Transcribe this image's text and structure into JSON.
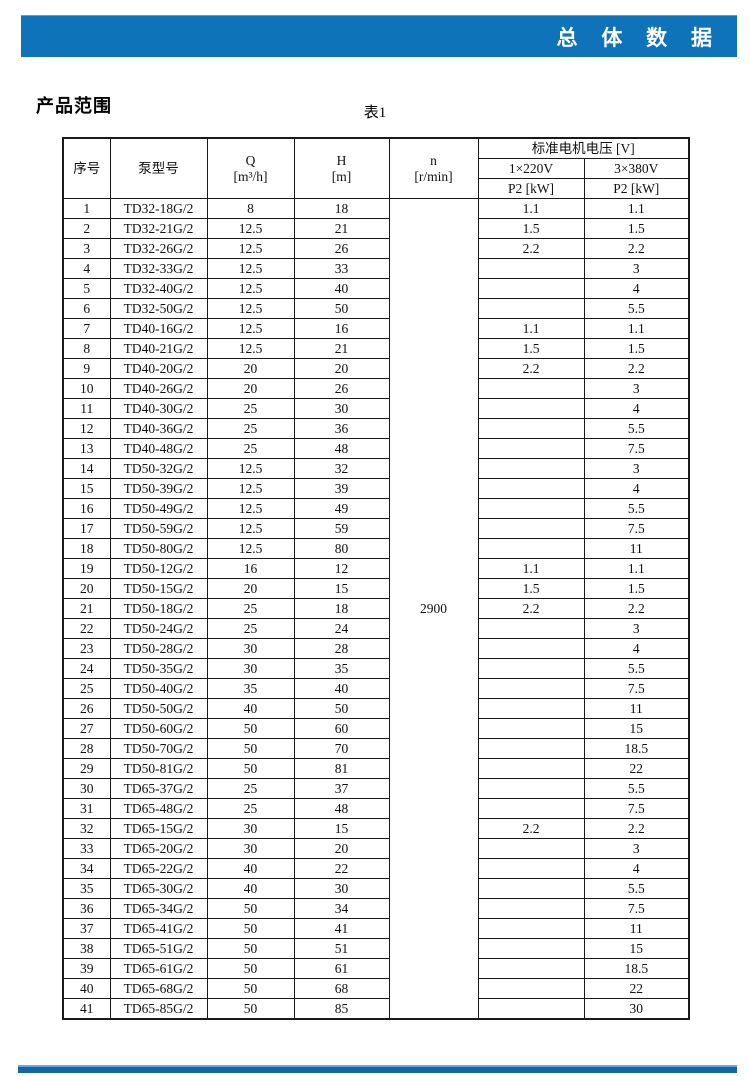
{
  "page": {
    "banner_title": "总 体 数 据",
    "section_title": "产品范围",
    "table_caption": "表1"
  },
  "colors": {
    "banner_blue": "#0e73b9",
    "footer_blue": "#1166a9",
    "border_black": "#1a1a1a"
  },
  "table": {
    "headers": {
      "no": "序号",
      "model": "泵型号",
      "q_line1": "Q",
      "q_line2": "[m³/h]",
      "h_line1": "H",
      "h_line2": "[m]",
      "n_line1": "n",
      "n_line2": "[r/min]",
      "voltage_group": "标准电机电压 [V]",
      "v220": "1×220V",
      "v380": "3×380V",
      "p2_220_label": "P2 [kW]",
      "p2_380_label": "P2 [kW]"
    },
    "speed_rpm": "2900",
    "rows": [
      {
        "no": "1",
        "model": "TD32-18G/2",
        "q": "8",
        "h": "18",
        "p2_220": "1.1",
        "p2_380": "1.1"
      },
      {
        "no": "2",
        "model": "TD32-21G/2",
        "q": "12.5",
        "h": "21",
        "p2_220": "1.5",
        "p2_380": "1.5"
      },
      {
        "no": "3",
        "model": "TD32-26G/2",
        "q": "12.5",
        "h": "26",
        "p2_220": "2.2",
        "p2_380": "2.2"
      },
      {
        "no": "4",
        "model": "TD32-33G/2",
        "q": "12.5",
        "h": "33",
        "p2_220": "",
        "p2_380": "3"
      },
      {
        "no": "5",
        "model": "TD32-40G/2",
        "q": "12.5",
        "h": "40",
        "p2_220": "",
        "p2_380": "4"
      },
      {
        "no": "6",
        "model": "TD32-50G/2",
        "q": "12.5",
        "h": "50",
        "p2_220": "",
        "p2_380": "5.5"
      },
      {
        "no": "7",
        "model": "TD40-16G/2",
        "q": "12.5",
        "h": "16",
        "p2_220": "1.1",
        "p2_380": "1.1"
      },
      {
        "no": "8",
        "model": "TD40-21G/2",
        "q": "12.5",
        "h": "21",
        "p2_220": "1.5",
        "p2_380": "1.5"
      },
      {
        "no": "9",
        "model": "TD40-20G/2",
        "q": "20",
        "h": "20",
        "p2_220": "2.2",
        "p2_380": "2.2"
      },
      {
        "no": "10",
        "model": "TD40-26G/2",
        "q": "20",
        "h": "26",
        "p2_220": "",
        "p2_380": "3"
      },
      {
        "no": "11",
        "model": "TD40-30G/2",
        "q": "25",
        "h": "30",
        "p2_220": "",
        "p2_380": "4"
      },
      {
        "no": "12",
        "model": "TD40-36G/2",
        "q": "25",
        "h": "36",
        "p2_220": "",
        "p2_380": "5.5"
      },
      {
        "no": "13",
        "model": "TD40-48G/2",
        "q": "25",
        "h": "48",
        "p2_220": "",
        "p2_380": "7.5"
      },
      {
        "no": "14",
        "model": "TD50-32G/2",
        "q": "12.5",
        "h": "32",
        "p2_220": "",
        "p2_380": "3"
      },
      {
        "no": "15",
        "model": "TD50-39G/2",
        "q": "12.5",
        "h": "39",
        "p2_220": "",
        "p2_380": "4"
      },
      {
        "no": "16",
        "model": "TD50-49G/2",
        "q": "12.5",
        "h": "49",
        "p2_220": "",
        "p2_380": "5.5"
      },
      {
        "no": "17",
        "model": "TD50-59G/2",
        "q": "12.5",
        "h": "59",
        "p2_220": "",
        "p2_380": "7.5"
      },
      {
        "no": "18",
        "model": "TD50-80G/2",
        "q": "12.5",
        "h": "80",
        "p2_220": "",
        "p2_380": "11"
      },
      {
        "no": "19",
        "model": "TD50-12G/2",
        "q": "16",
        "h": "12",
        "p2_220": "1.1",
        "p2_380": "1.1"
      },
      {
        "no": "20",
        "model": "TD50-15G/2",
        "q": "20",
        "h": "15",
        "p2_220": "1.5",
        "p2_380": "1.5"
      },
      {
        "no": "21",
        "model": "TD50-18G/2",
        "q": "25",
        "h": "18",
        "p2_220": "2.2",
        "p2_380": "2.2"
      },
      {
        "no": "22",
        "model": "TD50-24G/2",
        "q": "25",
        "h": "24",
        "p2_220": "",
        "p2_380": "3"
      },
      {
        "no": "23",
        "model": "TD50-28G/2",
        "q": "30",
        "h": "28",
        "p2_220": "",
        "p2_380": "4"
      },
      {
        "no": "24",
        "model": "TD50-35G/2",
        "q": "30",
        "h": "35",
        "p2_220": "",
        "p2_380": "5.5"
      },
      {
        "no": "25",
        "model": "TD50-40G/2",
        "q": "35",
        "h": "40",
        "p2_220": "",
        "p2_380": "7.5"
      },
      {
        "no": "26",
        "model": "TD50-50G/2",
        "q": "40",
        "h": "50",
        "p2_220": "",
        "p2_380": "11"
      },
      {
        "no": "27",
        "model": "TD50-60G/2",
        "q": "50",
        "h": "60",
        "p2_220": "",
        "p2_380": "15"
      },
      {
        "no": "28",
        "model": "TD50-70G/2",
        "q": "50",
        "h": "70",
        "p2_220": "",
        "p2_380": "18.5"
      },
      {
        "no": "29",
        "model": "TD50-81G/2",
        "q": "50",
        "h": "81",
        "p2_220": "",
        "p2_380": "22"
      },
      {
        "no": "30",
        "model": "TD65-37G/2",
        "q": "25",
        "h": "37",
        "p2_220": "",
        "p2_380": "5.5"
      },
      {
        "no": "31",
        "model": "TD65-48G/2",
        "q": "25",
        "h": "48",
        "p2_220": "",
        "p2_380": "7.5"
      },
      {
        "no": "32",
        "model": "TD65-15G/2",
        "q": "30",
        "h": "15",
        "p2_220": "2.2",
        "p2_380": "2.2"
      },
      {
        "no": "33",
        "model": "TD65-20G/2",
        "q": "30",
        "h": "20",
        "p2_220": "",
        "p2_380": "3"
      },
      {
        "no": "34",
        "model": "TD65-22G/2",
        "q": "40",
        "h": "22",
        "p2_220": "",
        "p2_380": "4"
      },
      {
        "no": "35",
        "model": "TD65-30G/2",
        "q": "40",
        "h": "30",
        "p2_220": "",
        "p2_380": "5.5"
      },
      {
        "no": "36",
        "model": "TD65-34G/2",
        "q": "50",
        "h": "34",
        "p2_220": "",
        "p2_380": "7.5"
      },
      {
        "no": "37",
        "model": "TD65-41G/2",
        "q": "50",
        "h": "41",
        "p2_220": "",
        "p2_380": "11"
      },
      {
        "no": "38",
        "model": "TD65-51G/2",
        "q": "50",
        "h": "51",
        "p2_220": "",
        "p2_380": "15"
      },
      {
        "no": "39",
        "model": "TD65-61G/2",
        "q": "50",
        "h": "61",
        "p2_220": "",
        "p2_380": "18.5"
      },
      {
        "no": "40",
        "model": "TD65-68G/2",
        "q": "50",
        "h": "68",
        "p2_220": "",
        "p2_380": "22"
      },
      {
        "no": "41",
        "model": "TD65-85G/2",
        "q": "50",
        "h": "85",
        "p2_220": "",
        "p2_380": "30"
      }
    ]
  }
}
